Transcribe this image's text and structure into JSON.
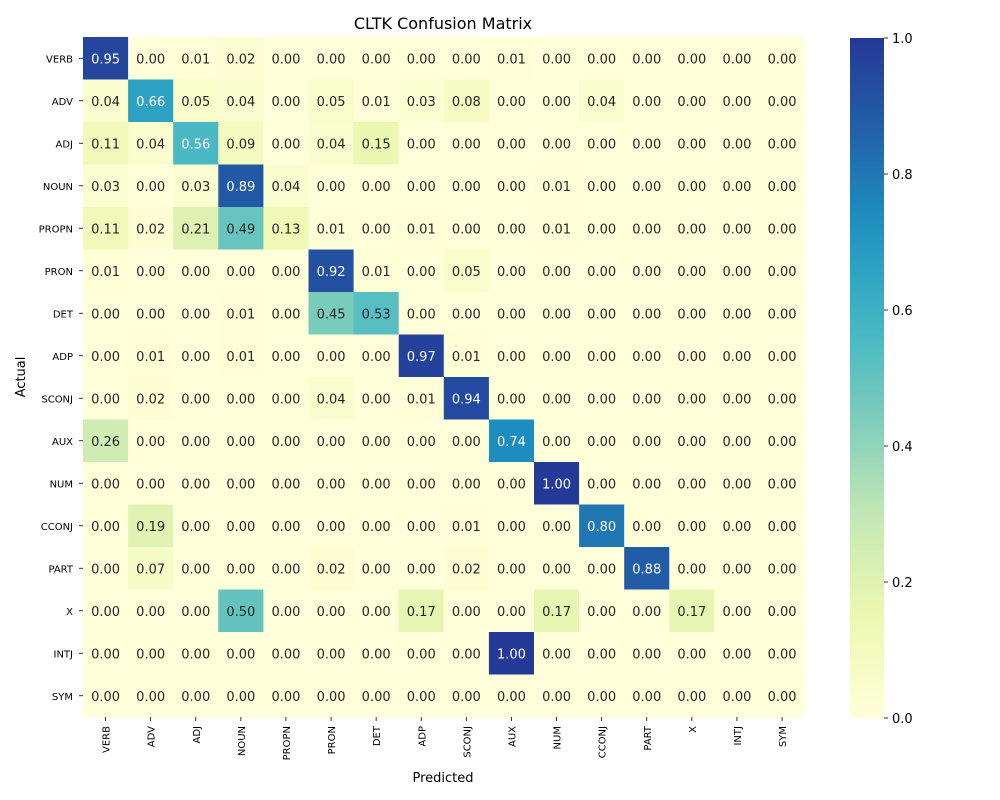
{
  "chart_data": {
    "type": "heatmap",
    "title": "CLTK Confusion Matrix",
    "xlabel": "Predicted",
    "ylabel": "Actual",
    "labels": [
      "VERB",
      "ADV",
      "ADJ",
      "NOUN",
      "PROPN",
      "PRON",
      "DET",
      "ADP",
      "SCONJ",
      "AUX",
      "NUM",
      "CCONJ",
      "PART",
      "X",
      "INTJ",
      "SYM"
    ],
    "matrix": [
      [
        0.95,
        0.0,
        0.01,
        0.02,
        0.0,
        0.0,
        0.0,
        0.0,
        0.0,
        0.01,
        0.0,
        0.0,
        0.0,
        0.0,
        0.0,
        0.0
      ],
      [
        0.04,
        0.66,
        0.05,
        0.04,
        0.0,
        0.05,
        0.01,
        0.03,
        0.08,
        0.0,
        0.0,
        0.04,
        0.0,
        0.0,
        0.0,
        0.0
      ],
      [
        0.11,
        0.04,
        0.56,
        0.09,
        0.0,
        0.04,
        0.15,
        0.0,
        0.0,
        0.0,
        0.0,
        0.0,
        0.0,
        0.0,
        0.0,
        0.0
      ],
      [
        0.03,
        0.0,
        0.03,
        0.89,
        0.04,
        0.0,
        0.0,
        0.0,
        0.0,
        0.0,
        0.01,
        0.0,
        0.0,
        0.0,
        0.0,
        0.0
      ],
      [
        0.11,
        0.02,
        0.21,
        0.49,
        0.13,
        0.01,
        0.0,
        0.01,
        0.0,
        0.0,
        0.01,
        0.0,
        0.0,
        0.0,
        0.0,
        0.0
      ],
      [
        0.01,
        0.0,
        0.0,
        0.0,
        0.0,
        0.92,
        0.01,
        0.0,
        0.05,
        0.0,
        0.0,
        0.0,
        0.0,
        0.0,
        0.0,
        0.0
      ],
      [
        0.0,
        0.0,
        0.0,
        0.01,
        0.0,
        0.45,
        0.53,
        0.0,
        0.0,
        0.0,
        0.0,
        0.0,
        0.0,
        0.0,
        0.0,
        0.0
      ],
      [
        0.0,
        0.01,
        0.0,
        0.01,
        0.0,
        0.0,
        0.0,
        0.97,
        0.01,
        0.0,
        0.0,
        0.0,
        0.0,
        0.0,
        0.0,
        0.0
      ],
      [
        0.0,
        0.02,
        0.0,
        0.0,
        0.0,
        0.04,
        0.0,
        0.01,
        0.94,
        0.0,
        0.0,
        0.0,
        0.0,
        0.0,
        0.0,
        0.0
      ],
      [
        0.26,
        0.0,
        0.0,
        0.0,
        0.0,
        0.0,
        0.0,
        0.0,
        0.0,
        0.74,
        0.0,
        0.0,
        0.0,
        0.0,
        0.0,
        0.0
      ],
      [
        0.0,
        0.0,
        0.0,
        0.0,
        0.0,
        0.0,
        0.0,
        0.0,
        0.0,
        0.0,
        1.0,
        0.0,
        0.0,
        0.0,
        0.0,
        0.0
      ],
      [
        0.0,
        0.19,
        0.0,
        0.0,
        0.0,
        0.0,
        0.0,
        0.0,
        0.01,
        0.0,
        0.0,
        0.8,
        0.0,
        0.0,
        0.0,
        0.0
      ],
      [
        0.0,
        0.07,
        0.0,
        0.0,
        0.0,
        0.02,
        0.0,
        0.0,
        0.02,
        0.0,
        0.0,
        0.0,
        0.88,
        0.0,
        0.0,
        0.0
      ],
      [
        0.0,
        0.0,
        0.0,
        0.5,
        0.0,
        0.0,
        0.0,
        0.17,
        0.0,
        0.0,
        0.17,
        0.0,
        0.0,
        0.17,
        0.0,
        0.0
      ],
      [
        0.0,
        0.0,
        0.0,
        0.0,
        0.0,
        0.0,
        0.0,
        0.0,
        0.0,
        1.0,
        0.0,
        0.0,
        0.0,
        0.0,
        0.0,
        0.0
      ],
      [
        0.0,
        0.0,
        0.0,
        0.0,
        0.0,
        0.0,
        0.0,
        0.0,
        0.0,
        0.0,
        0.0,
        0.0,
        0.0,
        0.0,
        0.0,
        0.0
      ]
    ],
    "value_format": "2 decimals",
    "colormap": "YlGnBu",
    "colorbar": {
      "range": [
        0.0,
        1.0
      ],
      "ticks": [
        "0.0",
        "0.2",
        "0.4",
        "0.6",
        "0.8",
        "1.0"
      ],
      "tick_values": [
        0.0,
        0.2,
        0.4,
        0.6,
        0.8,
        1.0
      ]
    },
    "grid": false,
    "legend": "colorbar-right"
  }
}
